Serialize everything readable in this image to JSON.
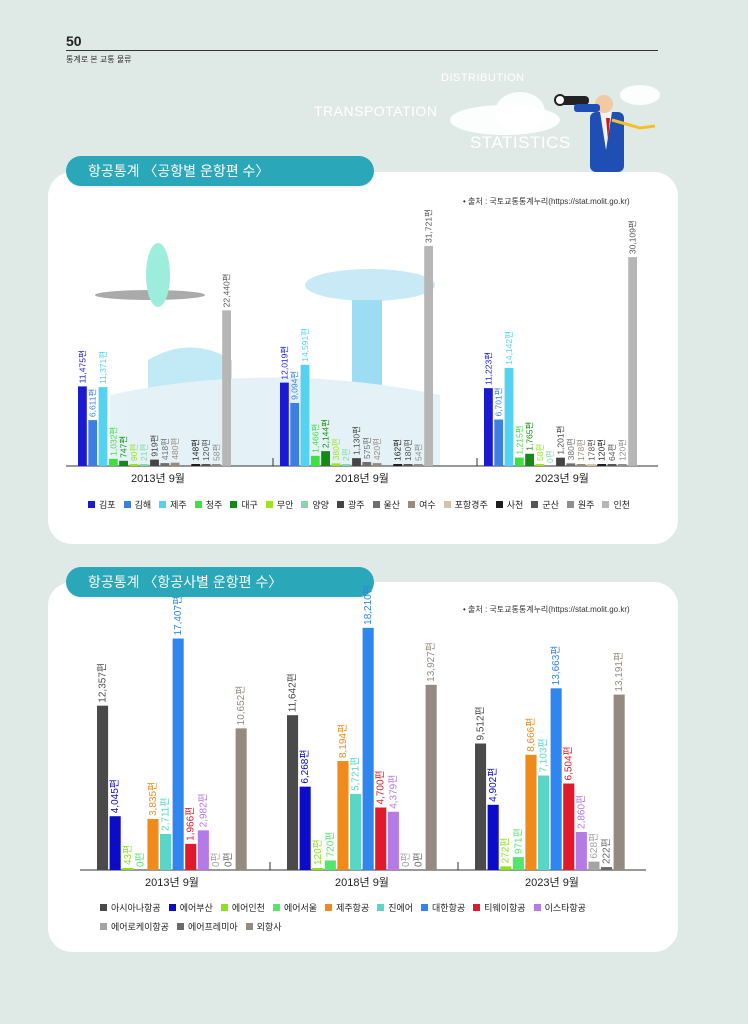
{
  "page": {
    "number": "50",
    "subtitle": "통계로 본 교통 물류"
  },
  "banner": {
    "word1": "DISTRIBUTION",
    "word2": "TRANSPOTATION",
    "word3": "STATISTICS"
  },
  "colors": {
    "pill": "#2aa7b8",
    "card": "#ffffff",
    "bg": "#dfeae6"
  },
  "chart_data": [
    {
      "type": "bar",
      "title": "항공통계 〈공항별 운항편 수〉",
      "source": "• 출처 : 국토교통통계누리(https://stat.molit.go.kr)",
      "categories": [
        "2013년 9월",
        "2018년 9월",
        "2023년 9월"
      ],
      "series": [
        {
          "name": "김포",
          "color": "#1a1ad0",
          "values": [
            11475,
            12019,
            11223
          ],
          "labels": [
            "11,475편",
            "12,019편",
            "11,223편"
          ]
        },
        {
          "name": "김해",
          "color": "#3d7fe0",
          "values": [
            6611,
            9094,
            6701
          ],
          "labels": [
            "6,611편",
            "9,094편",
            "6,701편"
          ]
        },
        {
          "name": "제주",
          "color": "#53d2f2",
          "values": [
            11371,
            14591,
            14142
          ],
          "labels": [
            "11,371편",
            "14,591편",
            "14,142편"
          ]
        },
        {
          "name": "청주",
          "color": "#3ee23e",
          "values": [
            1032,
            1466,
            1215
          ],
          "labels": [
            "1,032편",
            "1,466편",
            "1,215편"
          ]
        },
        {
          "name": "대구",
          "color": "#148a14",
          "values": [
            747,
            2144,
            1765
          ],
          "labels": [
            "747편",
            "2,144편",
            "1,765편"
          ]
        },
        {
          "name": "무안",
          "color": "#9ae61a",
          "values": [
            90,
            380,
            58
          ],
          "labels": [
            "90편",
            "380편",
            "58편"
          ]
        },
        {
          "name": "양양",
          "color": "#86d6b0",
          "values": [
            21,
            2,
            0
          ],
          "labels": [
            "21편",
            "2편",
            "0편"
          ]
        },
        {
          "name": "광주",
          "color": "#444444",
          "values": [
            919,
            1130,
            1201
          ],
          "labels": [
            "919편",
            "1,130편",
            "1,201편"
          ]
        },
        {
          "name": "울산",
          "color": "#6e6e6e",
          "values": [
            418,
            575,
            380
          ],
          "labels": [
            "418편",
            "575편",
            "380편"
          ]
        },
        {
          "name": "여수",
          "color": "#9b8a7c",
          "values": [
            480,
            420,
            178
          ],
          "labels": [
            "480편",
            "420편",
            "178편"
          ]
        },
        {
          "name": "포항경주",
          "color": "#cfc6a8",
          "values": [
            0,
            0,
            178
          ],
          "labels": [
            "",
            "",
            "178편"
          ]
        },
        {
          "name": "사천",
          "color": "#1e1e1e",
          "values": [
            148,
            162,
            120
          ],
          "labels": [
            "148편",
            "162편",
            "120편"
          ]
        },
        {
          "name": "군산",
          "color": "#555555",
          "values": [
            120,
            180,
            64
          ],
          "labels": [
            "120편",
            "180편",
            "64편"
          ]
        },
        {
          "name": "원주",
          "color": "#8e8e8e",
          "values": [
            58,
            54,
            120
          ],
          "labels": [
            "58편",
            "54편",
            "120편"
          ]
        },
        {
          "name": "인천",
          "color": "#b6b6b6",
          "values": [
            22440,
            31721,
            30109
          ],
          "labels": [
            "22,440편",
            "31,721편",
            "30,109편"
          ]
        }
      ],
      "ylim": [
        0,
        32000
      ],
      "legend": "bottom"
    },
    {
      "type": "bar",
      "title": "항공통계 〈항공사별 운항편 수〉",
      "source": "• 출처 : 국토교통통계누리(https://stat.molit.go.kr)",
      "categories": [
        "2013년 9월",
        "2018년 9월",
        "2023년 9월"
      ],
      "series": [
        {
          "name": "아시아나항공",
          "color": "#4a4a4a",
          "values": [
            12357,
            11642,
            9512
          ],
          "labels": [
            "12,357편",
            "11,642편",
            "9,512편"
          ]
        },
        {
          "name": "에어부산",
          "color": "#0c0cc8",
          "values": [
            4045,
            6268,
            4902
          ],
          "labels": [
            "4,045편",
            "6,268편",
            "4,902편"
          ]
        },
        {
          "name": "에어인천",
          "color": "#8ee21a",
          "values": [
            43,
            120,
            272
          ],
          "labels": [
            "43편",
            "120편",
            "272편"
          ]
        },
        {
          "name": "에어서울",
          "color": "#54e66c",
          "values": [
            0,
            720,
            971
          ],
          "labels": [
            "0편",
            "720편",
            "971편"
          ]
        },
        {
          "name": "제주항공",
          "color": "#f08a1a",
          "values": [
            3835,
            8194,
            8666
          ],
          "labels": [
            "3,835편",
            "8,194편",
            "8,666편"
          ]
        },
        {
          "name": "진에어",
          "color": "#5ad6c6",
          "values": [
            2711,
            5721,
            7103
          ],
          "labels": [
            "2,711편",
            "5,721편",
            "7,103편"
          ]
        },
        {
          "name": "대한항공",
          "color": "#2e86ee",
          "values": [
            17407,
            18210,
            13663
          ],
          "labels": [
            "17,407편",
            "18,210편",
            "13,663편"
          ]
        },
        {
          "name": "티웨이항공",
          "color": "#e01a2a",
          "values": [
            1966,
            4700,
            6504
          ],
          "labels": [
            "1,966편",
            "4,700편",
            "6,504편"
          ]
        },
        {
          "name": "이스타항공",
          "color": "#b47ae6",
          "values": [
            2982,
            4379,
            2860
          ],
          "labels": [
            "2,982편",
            "4,379편",
            "2,860편"
          ]
        },
        {
          "name": "에어로케이항공",
          "color": "#a4a4a4",
          "values": [
            0,
            0,
            628
          ],
          "labels": [
            "0편",
            "0편",
            "628편"
          ]
        },
        {
          "name": "에어프레미아",
          "color": "#6a6a6a",
          "values": [
            0,
            0,
            222
          ],
          "labels": [
            "0편",
            "0편",
            "222편"
          ]
        },
        {
          "name": "외항사",
          "color": "#948a80",
          "values": [
            10652,
            13927,
            13191
          ],
          "labels": [
            "10,652편",
            "13,927편",
            "13,191편"
          ]
        }
      ],
      "ylim": [
        0,
        18500
      ],
      "legend": "bottom"
    }
  ]
}
